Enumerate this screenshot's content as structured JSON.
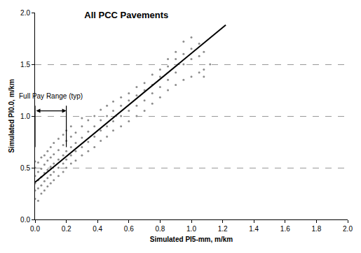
{
  "chart_data": {
    "type": "scatter",
    "title": "All PCC Pavements",
    "x_label": "Simulated PI5-mm, m/km",
    "y_label": "Simulated PI0.0, m/km",
    "xlim": [
      0,
      2
    ],
    "ylim": [
      0,
      2
    ],
    "xticks": [
      {
        "value": 0,
        "label": "0.0"
      },
      {
        "value": 0.2,
        "label": "0.2"
      },
      {
        "value": 0.4,
        "label": "0.4"
      },
      {
        "value": 0.6,
        "label": "0.6"
      },
      {
        "value": 0.8,
        "label": "0.8"
      },
      {
        "value": 1,
        "label": "1.0"
      },
      {
        "value": 1.2,
        "label": "1.2"
      },
      {
        "value": 1.4,
        "label": "1.4"
      },
      {
        "value": 1.6,
        "label": "1.6"
      },
      {
        "value": 1.8,
        "label": "1.8"
      },
      {
        "value": 2,
        "label": "2.0"
      }
    ],
    "yticks": [
      {
        "value": 0,
        "label": "0.0"
      },
      {
        "value": 0.5,
        "label": "0.5"
      },
      {
        "value": 1,
        "label": "1.0"
      },
      {
        "value": 1.5,
        "label": "1.5"
      },
      {
        "value": 2,
        "label": "2.0"
      }
    ],
    "grid": true,
    "series": [
      {
        "type": "scatter",
        "color": "#8c8c8c",
        "marker": "dot",
        "x": [
          0,
          0,
          0,
          0,
          0,
          0,
          0.02,
          0.02,
          0.02,
          0.02,
          0.02,
          0.04,
          0.04,
          0.04,
          0.04,
          0.04,
          0.06,
          0.06,
          0.06,
          0.06,
          0.06,
          0.08,
          0.08,
          0.08,
          0.08,
          0.08,
          0.1,
          0.1,
          0.1,
          0.1,
          0.1,
          0.12,
          0.12,
          0.12,
          0.12,
          0.12,
          0.15,
          0.15,
          0.15,
          0.15,
          0.15,
          0.18,
          0.18,
          0.18,
          0.18,
          0.18,
          0.2,
          0.2,
          0.2,
          0.2,
          0.2,
          0.23,
          0.23,
          0.23,
          0.23,
          0.23,
          0.26,
          0.26,
          0.26,
          0.26,
          0.3,
          0.3,
          0.3,
          0.3,
          0.3,
          0.34,
          0.34,
          0.34,
          0.34,
          0.38,
          0.38,
          0.38,
          0.38,
          0.42,
          0.42,
          0.42,
          0.42,
          0.46,
          0.46,
          0.46,
          0.46,
          0.5,
          0.5,
          0.5,
          0.5,
          0.55,
          0.55,
          0.55,
          0.55,
          0.6,
          0.6,
          0.6,
          0.6,
          0.65,
          0.65,
          0.65,
          0.65,
          0.7,
          0.7,
          0.7,
          0.7,
          0.75,
          0.75,
          0.75,
          0.75,
          0.8,
          0.8,
          0.8,
          0.8,
          0.85,
          0.85,
          0.85,
          0.85,
          0.9,
          0.9,
          0.9,
          0.9,
          0.95,
          0.95,
          0.95,
          0.95,
          1,
          1,
          1,
          1,
          1.05,
          1.05,
          1.05,
          1.08,
          1.08,
          1.08,
          1.12
        ],
        "values": [
          0.2,
          0.28,
          0.35,
          0.42,
          0.5,
          0.56,
          0.18,
          0.3,
          0.38,
          0.46,
          0.55,
          0.25,
          0.33,
          0.41,
          0.49,
          0.6,
          0.28,
          0.37,
          0.45,
          0.53,
          0.62,
          0.32,
          0.4,
          0.48,
          0.57,
          0.66,
          0.35,
          0.43,
          0.51,
          0.6,
          0.7,
          0.38,
          0.46,
          0.54,
          0.63,
          0.74,
          0.42,
          0.5,
          0.58,
          0.67,
          0.78,
          0.46,
          0.54,
          0.62,
          0.72,
          0.82,
          0.5,
          0.58,
          0.66,
          0.76,
          0.86,
          0.54,
          0.62,
          0.7,
          0.8,
          0.9,
          0.57,
          0.66,
          0.74,
          0.84,
          0.62,
          0.7,
          0.79,
          0.9,
          0.98,
          0.66,
          0.75,
          0.85,
          0.96,
          0.7,
          0.8,
          0.9,
          1.0,
          0.76,
          0.86,
          0.96,
          1.06,
          0.8,
          0.9,
          1.0,
          1.1,
          0.86,
          0.95,
          1.05,
          1.14,
          0.9,
          1.0,
          1.1,
          1.18,
          0.95,
          1.05,
          1.15,
          1.22,
          1.0,
          1.1,
          1.2,
          1.28,
          1.05,
          1.15,
          1.25,
          1.32,
          1.12,
          1.22,
          1.3,
          1.4,
          1.18,
          1.28,
          1.38,
          1.45,
          1.25,
          1.35,
          1.48,
          1.55,
          1.3,
          1.42,
          1.55,
          1.62,
          1.35,
          1.5,
          1.6,
          1.72,
          1.38,
          1.55,
          1.65,
          1.76,
          1.42,
          1.58,
          1.7,
          1.38,
          1.45,
          1.62,
          1.5
        ]
      },
      {
        "type": "line",
        "color": "#000000",
        "line_style": "solid",
        "x": [
          0,
          1.22
        ],
        "values": [
          0.36,
          1.88
        ]
      }
    ],
    "annotations": [
      {
        "text": "Full Pay Range (typ)",
        "x": 0.1,
        "y": 1.14,
        "range": [
          0,
          0.2
        ],
        "arrow_y": 1.05,
        "marker_top": 1.1,
        "marker_bottom": 0.7
      }
    ]
  }
}
